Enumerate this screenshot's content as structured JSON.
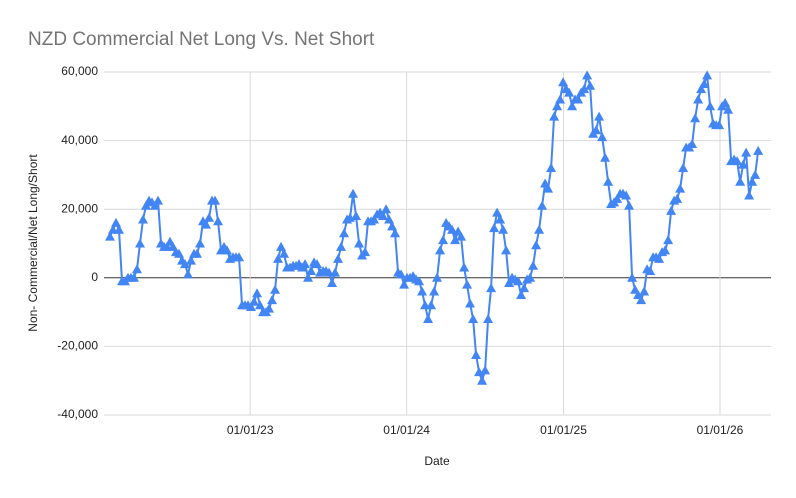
{
  "chart_data": {
    "type": "line",
    "title": "NZD Commercial Net Long Vs. Net Short",
    "x_label": "Date",
    "y_label": "Non- Commercial/Net Long/Short",
    "color": "#4285f4",
    "grid": true,
    "x": [
      "02/08/22",
      "02/15/22",
      "02/22/22",
      "03/01/22",
      "03/08/22",
      "03/15/22",
      "03/22/22",
      "03/29/22",
      "04/05/22",
      "04/12/22",
      "04/19/22",
      "04/26/22",
      "05/03/22",
      "05/10/22",
      "05/17/22",
      "05/24/22",
      "05/31/22",
      "06/07/22",
      "06/14/22",
      "06/21/22",
      "06/28/22",
      "07/05/22",
      "07/12/22",
      "07/19/22",
      "07/26/22",
      "08/02/22",
      "08/09/22",
      "08/16/22",
      "08/23/22",
      "08/30/22",
      "09/06/22",
      "09/13/22",
      "09/20/22",
      "09/27/22",
      "10/04/22",
      "10/11/22",
      "10/18/22",
      "10/25/22",
      "11/01/22",
      "11/08/22",
      "11/15/22",
      "11/22/22",
      "11/29/22",
      "12/06/22",
      "12/13/22",
      "12/20/22",
      "12/27/22",
      "01/03/23",
      "01/10/23",
      "01/17/23",
      "01/24/23",
      "01/31/23",
      "02/07/23",
      "02/14/23",
      "02/21/23",
      "02/28/23",
      "03/07/23",
      "03/14/23",
      "03/21/23",
      "03/28/23",
      "04/04/23",
      "04/11/23",
      "04/18/23",
      "04/25/23",
      "05/02/23",
      "05/09/23",
      "05/16/23",
      "05/23/23",
      "05/30/23",
      "06/06/23",
      "06/13/23",
      "06/20/23",
      "06/27/23",
      "07/04/23",
      "07/11/23",
      "07/18/23",
      "07/25/23",
      "08/01/23",
      "08/08/23",
      "08/15/23",
      "08/22/23",
      "08/29/23",
      "09/05/23",
      "09/12/23",
      "09/19/23",
      "09/26/23",
      "10/03/23",
      "10/10/23",
      "10/17/23",
      "10/24/23",
      "10/31/23",
      "11/07/23",
      "11/14/23",
      "11/21/23",
      "11/28/23",
      "12/05/23",
      "12/12/23",
      "12/19/23",
      "12/26/23",
      "01/02/24",
      "01/09/24",
      "01/16/24",
      "01/23/24",
      "01/30/24",
      "02/06/24",
      "02/13/24",
      "02/20/24",
      "02/27/24",
      "03/05/24",
      "03/12/24",
      "03/19/24",
      "03/26/24",
      "04/02/24",
      "04/09/24",
      "04/16/24",
      "04/23/24",
      "04/30/24",
      "05/07/24",
      "05/14/24",
      "05/21/24",
      "05/28/24",
      "06/04/24",
      "06/11/24",
      "06/18/24",
      "06/25/24",
      "07/02/24",
      "07/09/24",
      "07/16/24",
      "07/23/24",
      "07/30/24",
      "08/06/24",
      "08/13/24",
      "08/20/24",
      "08/27/24",
      "09/03/24",
      "09/10/24",
      "09/17/24",
      "09/24/24",
      "10/01/24",
      "10/08/24",
      "10/15/24",
      "10/22/24",
      "10/29/24",
      "11/05/24",
      "11/12/24",
      "11/19/24",
      "11/26/24",
      "12/03/24",
      "12/10/24",
      "12/17/24",
      "12/24/24",
      "12/31/24",
      "01/07/25",
      "01/14/25",
      "01/21/25",
      "01/28/25",
      "02/04/25",
      "02/11/25",
      "02/18/25",
      "02/25/25",
      "03/04/25",
      "03/11/25",
      "03/18/25",
      "03/25/25",
      "04/01/25",
      "04/08/25",
      "04/15/25",
      "04/22/25",
      "04/29/25",
      "05/06/25",
      "05/13/25",
      "05/20/25",
      "05/27/25",
      "06/03/25",
      "06/10/25",
      "06/17/25",
      "06/24/25",
      "07/01/25",
      "07/08/25",
      "07/15/25",
      "07/22/25",
      "07/29/25",
      "08/05/25",
      "08/12/25",
      "08/19/25",
      "08/26/25",
      "09/02/25",
      "09/09/25",
      "09/16/25",
      "09/23/25",
      "09/30/25",
      "10/07/25",
      "10/14/25",
      "10/21/25",
      "10/28/25",
      "11/04/25",
      "11/11/25",
      "11/18/25",
      "11/25/25",
      "12/02/25",
      "12/09/25",
      "12/16/25",
      "12/23/25",
      "12/30/25",
      "01/06/26",
      "01/13/26",
      "01/20/26",
      "01/27/26",
      "02/03/26",
      "02/10/26",
      "02/17/26",
      "02/24/26",
      "03/03/26",
      "03/10/26",
      "03/17/26",
      "03/24/26",
      "03/31/26"
    ],
    "values": [
      12000,
      14000,
      16000,
      14000,
      -1000,
      -1000,
      0,
      0,
      0,
      2500,
      10000,
      17000,
      21000,
      22500,
      22000,
      21000,
      22500,
      10000,
      9000,
      9000,
      10500,
      9000,
      7500,
      7000,
      5000,
      4000,
      1000,
      5000,
      7000,
      7000,
      10000,
      16500,
      15500,
      17500,
      22500,
      22500,
      16500,
      8000,
      9000,
      8000,
      5500,
      6000,
      6000,
      6000,
      -8000,
      -8000,
      -8000,
      -8500,
      -7000,
      -4500,
      -8000,
      -10000,
      -10000,
      -9000,
      -6500,
      -3500,
      5500,
      9000,
      7000,
      3000,
      3000,
      3500,
      3500,
      4000,
      3000,
      4000,
      0,
      2000,
      4500,
      4000,
      1500,
      2000,
      2000,
      1500,
      -1500,
      1500,
      5500,
      9000,
      13000,
      17000,
      17500,
      24500,
      18000,
      10000,
      6500,
      7500,
      16500,
      16500,
      17000,
      18500,
      19000,
      18000,
      20000,
      17000,
      15000,
      13000,
      1500,
      1000,
      -2000,
      0,
      0,
      500,
      -500,
      -1000,
      -4000,
      -8000,
      -12000,
      -8000,
      -4000,
      0,
      8000,
      11000,
      16000,
      15000,
      14000,
      11000,
      13500,
      12000,
      3000,
      -2000,
      -7500,
      -12000,
      -22500,
      -27500,
      -30000,
      -27000,
      -12000,
      -3000,
      14500,
      19000,
      17000,
      14000,
      8000,
      -1500,
      0,
      -500,
      -1000,
      -5000,
      -3000,
      -500,
      0,
      3500,
      9500,
      14000,
      21000,
      27500,
      26000,
      32000,
      47000,
      50000,
      52000,
      57000,
      55000,
      54000,
      50000,
      52000,
      52000,
      54000,
      55000,
      59000,
      56000,
      42000,
      43000,
      47000,
      41000,
      35000,
      28000,
      21500,
      22000,
      23000,
      24500,
      24500,
      24000,
      21000,
      0,
      -3500,
      -5000,
      -6500,
      -4000,
      2500,
      2000,
      6000,
      6000,
      5500,
      7500,
      8000,
      11000,
      19500,
      22500,
      23000,
      26000,
      32000,
      38000,
      38000,
      39000,
      46500,
      52000,
      55000,
      56500,
      59000,
      50000,
      45000,
      44500,
      44500,
      50000,
      51000,
      49000,
      34000,
      34500,
      34000,
      28000,
      33000,
      36500,
      24000,
      28000,
      30000,
      37000
    ],
    "xlim": [
      "01/25/22",
      "04/30/26"
    ],
    "xticks": [
      "01/01/23",
      "01/01/24",
      "01/01/25",
      "01/01/26"
    ],
    "ylim": [
      -40000,
      60000
    ],
    "yticks": [
      {
        "value": -40000,
        "label": "-40,000"
      },
      {
        "value": -20000,
        "label": "-20,000"
      },
      0,
      {
        "value": 20000,
        "label": "20,000"
      },
      {
        "value": 40000,
        "label": "40,000"
      },
      {
        "value": 60000,
        "label": "60,000"
      }
    ]
  }
}
